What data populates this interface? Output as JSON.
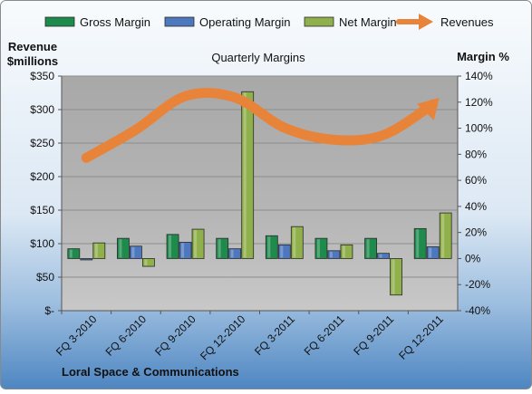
{
  "chart_data": {
    "type": "bar",
    "title": "Quarterly Margins",
    "company": "Loral Space & Communications",
    "ylabel_left": [
      "Revenue",
      "$millions"
    ],
    "ylabel_right": "Margin %",
    "categories": [
      "FQ 3-2010",
      "FQ 6-2010",
      "FQ 9-2010",
      "FQ 12-2010",
      "FQ 3-2011",
      "FQ 6-2011",
      "FQ 9-2011",
      "FQ 12-2011"
    ],
    "left_axis": {
      "min": 0,
      "max": 350,
      "step": 50,
      "tick_labels": [
        "$-",
        "$50",
        "$100",
        "$150",
        "$200",
        "$250",
        "$300",
        "$350"
      ]
    },
    "right_axis": {
      "min": -40,
      "max": 140,
      "step": 20,
      "tick_labels": [
        "-40%",
        "-20%",
        "0%",
        "20%",
        "40%",
        "60%",
        "80%",
        "100%",
        "120%",
        "140%"
      ]
    },
    "margin_series": [
      {
        "name": "Gross Margin",
        "color": "#1E8A4C",
        "values": [
          7.5,
          15.5,
          18.5,
          15.5,
          17.5,
          15.5,
          15.5,
          23
        ]
      },
      {
        "name": "Operating Margin",
        "color": "#4E78BE",
        "values": [
          -1,
          9.5,
          12.5,
          7.5,
          10.5,
          6,
          4,
          9
        ]
      },
      {
        "name": "Net Margin",
        "color": "#8FB04A",
        "values": [
          12,
          -6,
          22.5,
          128,
          24.5,
          10.5,
          -28,
          35
        ]
      }
    ],
    "revenue_series": {
      "name": "Revenues",
      "color": "#E8843A",
      "values": [
        228,
        270,
        320,
        318,
        273,
        255,
        262,
        308
      ]
    },
    "legend_position": "top",
    "grid": true
  }
}
